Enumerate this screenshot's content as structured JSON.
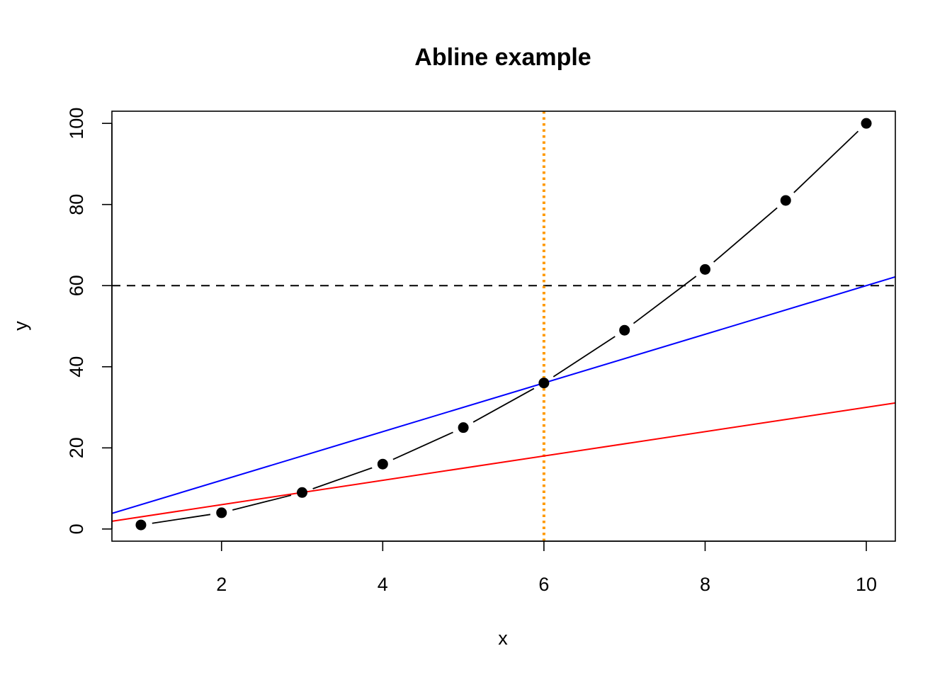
{
  "chart_data": {
    "type": "line",
    "title": "Abline example",
    "xlabel": "x",
    "ylabel": "y",
    "xlim": [
      0.64,
      10.36
    ],
    "ylim": [
      -3,
      103
    ],
    "xticks": [
      2,
      4,
      6,
      8,
      10
    ],
    "yticks": [
      0,
      20,
      40,
      60,
      80,
      100
    ],
    "grid": false,
    "legend": "none",
    "series": [
      {
        "style": "points-and-lines",
        "color": "#000000",
        "x": [
          1,
          2,
          3,
          4,
          5,
          6,
          7,
          8,
          9,
          10
        ],
        "y": [
          1,
          4,
          9,
          16,
          25,
          36,
          49,
          64,
          81,
          100
        ]
      }
    ],
    "reference_lines": [
      {
        "kind": "horizontal",
        "y": 60,
        "color": "#000000",
        "style": "dashed"
      },
      {
        "kind": "vertical",
        "x": 6,
        "color": "#ff9900",
        "style": "dotted"
      },
      {
        "kind": "abline",
        "intercept": 0,
        "slope": 3,
        "color": "#ff0000",
        "style": "solid"
      },
      {
        "kind": "abline",
        "intercept": 0,
        "slope": 6,
        "color": "#0000ff",
        "style": "solid"
      }
    ]
  }
}
